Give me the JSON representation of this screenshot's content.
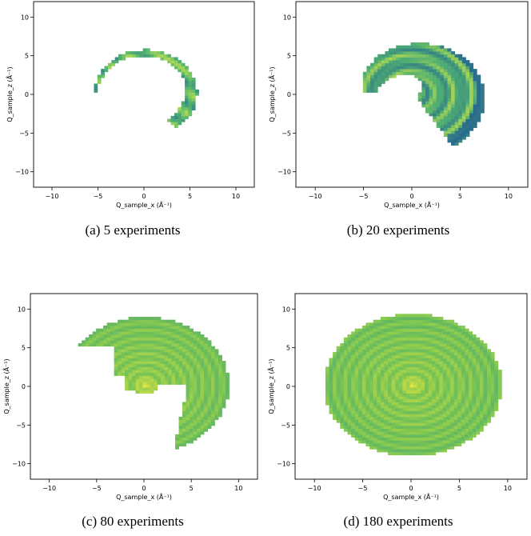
{
  "figure": {
    "panels": [
      {
        "caption": "(a) 5 experiments"
      },
      {
        "caption": "(b) 20 experiments"
      },
      {
        "caption": "(c) 80 experiments"
      },
      {
        "caption": "(d) 180 experiments"
      }
    ]
  },
  "chart_data": [
    {
      "type": "heatmap",
      "title": "",
      "xlabel": "Q_sample_x (Å⁻¹)",
      "ylabel": "Q_sample_z (Å⁻¹)",
      "xlim": [
        -12,
        12
      ],
      "ylim": [
        -12,
        12
      ],
      "xticks": [
        -10,
        -5,
        0,
        5,
        10
      ],
      "yticks": [
        -10,
        -5,
        0,
        5,
        10
      ],
      "grid": false,
      "region": {
        "shape": "arc",
        "outer_r": 5.6,
        "inner_r": 5.0,
        "start_deg": -55,
        "end_deg": 180,
        "thickness_growth": 1.2
      },
      "colors": {
        "low": "#2a7b8e",
        "mid": "#5bbb6a",
        "high": "#d9e84a"
      }
    },
    {
      "type": "heatmap",
      "title": "",
      "xlabel": "Q_sample_x (Å⁻¹)",
      "ylabel": "Q_sample_z (Å⁻¹)",
      "xlim": [
        -12,
        12
      ],
      "ylim": [
        -12,
        12
      ],
      "xticks": [
        -10,
        -5,
        0,
        5,
        10
      ],
      "yticks": [
        -10,
        -5,
        0,
        5,
        10
      ],
      "grid": false,
      "region": {
        "shape": "crescent",
        "outer_r": 8.0,
        "inner_r": 4.4,
        "start_deg": -60,
        "end_deg": 180
      },
      "colors": {
        "low": "#2a6b8e",
        "mid": "#4fae72",
        "high": "#e1ea46"
      }
    },
    {
      "type": "heatmap",
      "title": "",
      "xlabel": "Q_sample_x (Å⁻¹)",
      "ylabel": "Q_sample_z (Å⁻¹)",
      "xlim": [
        -12,
        12
      ],
      "ylim": [
        -12,
        12
      ],
      "xticks": [
        -10,
        -5,
        0,
        5,
        10
      ],
      "yticks": [
        -10,
        -5,
        0,
        5,
        10
      ],
      "grid": false,
      "region": {
        "shape": "spiral",
        "outer_r": 8.8,
        "start_deg": -60,
        "end_deg": 240
      },
      "colors": {
        "low": "#3a9a7a",
        "mid": "#7cc653",
        "high": "#f0ea40"
      }
    },
    {
      "type": "heatmap",
      "title": "",
      "xlabel": "Q_sample_x (Å⁻¹)",
      "ylabel": "Q_sample_z (Å⁻¹)",
      "xlim": [
        -12,
        12
      ],
      "ylim": [
        -12,
        12
      ],
      "xticks": [
        -10,
        -5,
        0,
        5,
        10
      ],
      "yticks": [
        -10,
        -5,
        0,
        5,
        10
      ],
      "grid": false,
      "region": {
        "shape": "disk",
        "outer_r": 9.2
      },
      "colors": {
        "low": "#2f9a7e",
        "mid": "#7cc653",
        "high": "#f2e93c"
      }
    }
  ]
}
